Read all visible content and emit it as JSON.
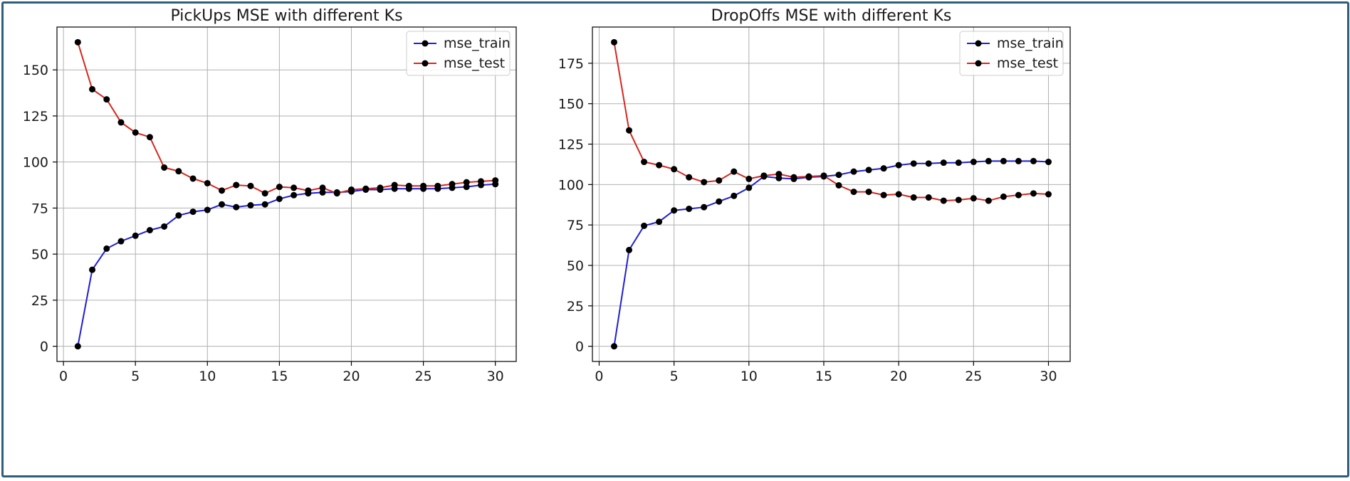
{
  "colors": {
    "frame": "#2f5d7c",
    "train": "#1f1fd6",
    "test": "#d6271f",
    "marker": "#000000",
    "grid": "#b0b0b0"
  },
  "chart_data": [
    {
      "type": "line",
      "title": "PickUps MSE with different Ks",
      "xlabel": "",
      "ylabel": "",
      "xlim": [
        -0.45,
        31.45
      ],
      "ylim": [
        -8.25,
        173.25
      ],
      "xticks": [
        0,
        5,
        10,
        15,
        20,
        25,
        30
      ],
      "yticks": [
        0,
        25,
        50,
        75,
        100,
        125,
        150
      ],
      "grid": true,
      "legend": "upper right",
      "x": [
        1,
        2,
        3,
        4,
        5,
        6,
        7,
        8,
        9,
        10,
        11,
        12,
        13,
        14,
        15,
        16,
        17,
        18,
        19,
        20,
        21,
        22,
        23,
        24,
        25,
        26,
        27,
        28,
        29,
        30
      ],
      "series": [
        {
          "name": "mse_train",
          "color": "#1f1fd6",
          "values": [
            0,
            41.5,
            53,
            57,
            60,
            63,
            65,
            71,
            73,
            74,
            77,
            75.5,
            76.5,
            77,
            80,
            82,
            83,
            83.5,
            83.5,
            84,
            85,
            85,
            85.5,
            85.5,
            85.5,
            85.5,
            86,
            86.5,
            87.5,
            88
          ]
        },
        {
          "name": "mse_test",
          "color": "#d6271f",
          "values": [
            165,
            139.5,
            134,
            121.5,
            116,
            113.5,
            97,
            95,
            91,
            88.5,
            84.5,
            87.5,
            87,
            83,
            86.5,
            86,
            84.5,
            86,
            83,
            85,
            85.5,
            86,
            87.5,
            87,
            87,
            87,
            88,
            89,
            89.5,
            90
          ]
        }
      ]
    },
    {
      "type": "line",
      "title": "DropOffs MSE with different Ks",
      "xlabel": "",
      "ylabel": "",
      "xlim": [
        -0.45,
        31.45
      ],
      "ylim": [
        -9.4,
        197.4
      ],
      "xticks": [
        0,
        5,
        10,
        15,
        20,
        25,
        30
      ],
      "yticks": [
        0,
        25,
        50,
        75,
        100,
        125,
        150,
        175
      ],
      "grid": true,
      "legend": "upper right",
      "x": [
        1,
        2,
        3,
        4,
        5,
        6,
        7,
        8,
        9,
        10,
        11,
        12,
        13,
        14,
        15,
        16,
        17,
        18,
        19,
        20,
        21,
        22,
        23,
        24,
        25,
        26,
        27,
        28,
        29,
        30
      ],
      "series": [
        {
          "name": "mse_train",
          "color": "#1f1fd6",
          "values": [
            0,
            59.5,
            74.5,
            77,
            84,
            85,
            86,
            89.5,
            93,
            98,
            105,
            104,
            103.5,
            104.5,
            105,
            106,
            108,
            109,
            110,
            112,
            113,
            113,
            113.5,
            113.5,
            114,
            114.5,
            114.5,
            114.5,
            114.5,
            114
          ]
        },
        {
          "name": "mse_test",
          "color": "#d6271f",
          "values": [
            188,
            133.5,
            114,
            112,
            109.5,
            104.5,
            101.5,
            102.5,
            108,
            103.5,
            105.5,
            106.5,
            104.5,
            105,
            105.5,
            99.5,
            95.5,
            95.5,
            93.5,
            94,
            92,
            92,
            90,
            90.5,
            91.5,
            90,
            92.5,
            93.5,
            94.5,
            94
          ]
        }
      ]
    }
  ]
}
